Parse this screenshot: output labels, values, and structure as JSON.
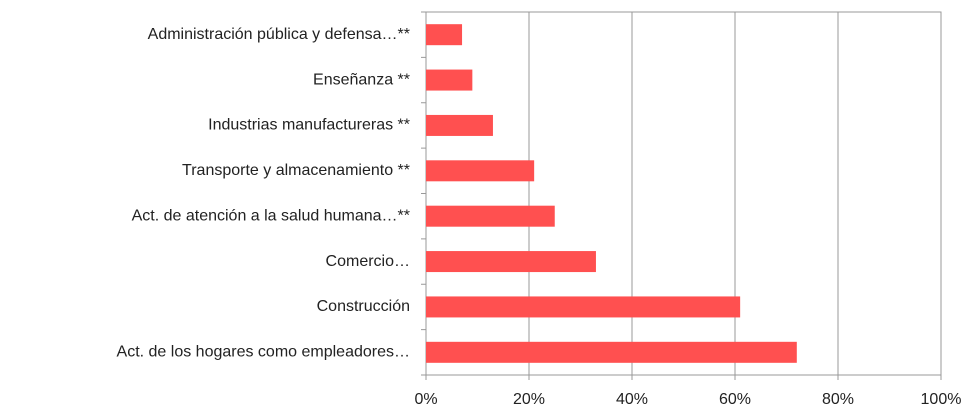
{
  "chart_data": {
    "type": "bar",
    "orientation": "horizontal",
    "categories": [
      "Administración pública y defensa…**",
      "Enseñanza **",
      "Industrias manufactureras **",
      "Transporte y almacenamiento **",
      "Act. de atención a la salud humana…**",
      "Comercio…",
      "Construcción",
      "Act. de los hogares como empleadores…"
    ],
    "values": [
      7,
      9,
      13,
      21,
      25,
      33,
      61,
      72
    ],
    "color": "#ff5050",
    "xlim": [
      0,
      100
    ],
    "xticks": [
      {
        "value": 0,
        "label": "0%"
      },
      {
        "value": 20,
        "label": "20%"
      },
      {
        "value": 40,
        "label": "40%"
      },
      {
        "value": 60,
        "label": "60%"
      },
      {
        "value": 80,
        "label": "80%"
      },
      {
        "value": 100,
        "label": "100%"
      }
    ],
    "grid": true
  }
}
